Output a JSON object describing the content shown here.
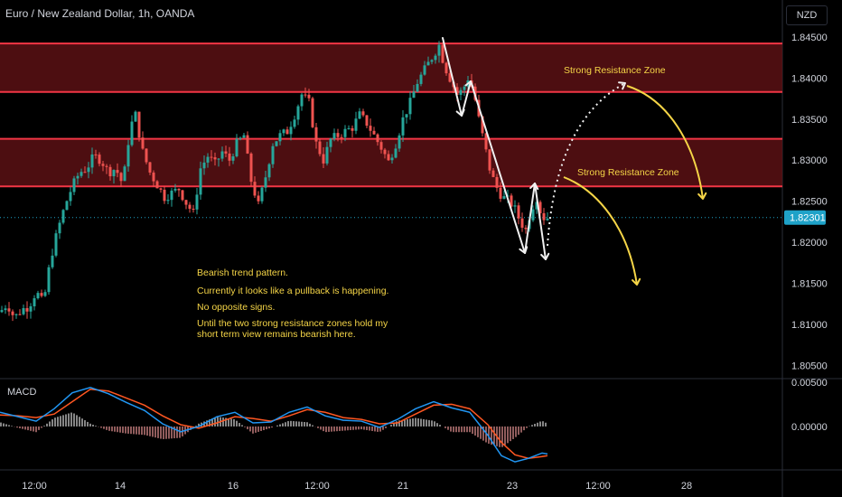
{
  "header": {
    "title": "Euro / New Zealand Dollar, 1h, OANDA",
    "currency": "NZD"
  },
  "macd_label": "MACD",
  "annotations": {
    "note_lines": [
      "Bearish trend pattern.",
      "Currently it looks like a pullback is happening.",
      "No opposite signs.",
      "Until the two strong resistance zones hold my",
      "short term view remains bearish here."
    ],
    "zone_label_upper": "Strong Resistance Zone",
    "zone_label_lower": "Strong Resistance Zone"
  },
  "colors": {
    "up": "#26a69a",
    "down": "#ef5350",
    "zone_fill": "#5a1014",
    "zone_border": "#f23645",
    "annotation": "#f5d547",
    "macd": "#2196f3",
    "signal": "#ff5722",
    "price_badge": "#1fa2c8"
  },
  "chart_data": {
    "type": "candlestick",
    "symbol": "EUR/NZD",
    "timeframe": "1h",
    "y_ticks": [
      "1.84500",
      "1.84000",
      "1.83500",
      "1.83000",
      "1.82500",
      "1.82000",
      "1.81500",
      "1.81000",
      "1.80500"
    ],
    "y_tick_values": [
      1.845,
      1.84,
      1.835,
      1.83,
      1.825,
      1.82,
      1.815,
      1.81,
      1.805
    ],
    "ylim": [
      1.8035,
      1.8495
    ],
    "x_ticks": [
      "12:00",
      "14",
      "16",
      "12:00",
      "21",
      "23",
      "12:00",
      "28"
    ],
    "current_price": "1.82301",
    "current_price_value": 1.82301,
    "resistance_zones": [
      {
        "name": "Strong Resistance Zone",
        "low": 1.8383,
        "high": 1.8442
      },
      {
        "name": "Strong Resistance Zone",
        "low": 1.8268,
        "high": 1.8326
      }
    ],
    "price_path": [
      [
        0,
        1.8115
      ],
      [
        8,
        1.8125
      ],
      [
        16,
        1.8108
      ],
      [
        24,
        1.8118
      ],
      [
        32,
        1.8122
      ],
      [
        40,
        1.814
      ],
      [
        48,
        1.8125
      ],
      [
        56,
        1.818
      ],
      [
        64,
        1.8215
      ],
      [
        72,
        1.8245
      ],
      [
        80,
        1.8268
      ],
      [
        88,
        1.8285
      ],
      [
        96,
        1.829
      ],
      [
        104,
        1.8305
      ],
      [
        112,
        1.83
      ],
      [
        120,
        1.8285
      ],
      [
        128,
        1.829
      ],
      [
        136,
        1.827
      ],
      [
        144,
        1.834
      ],
      [
        150,
        1.8355
      ],
      [
        158,
        1.831
      ],
      [
        166,
        1.8285
      ],
      [
        174,
        1.827
      ],
      [
        182,
        1.8255
      ],
      [
        190,
        1.826
      ],
      [
        198,
        1.8265
      ],
      [
        206,
        1.8248
      ],
      [
        214,
        1.8235
      ],
      [
        222,
        1.829
      ],
      [
        230,
        1.8305
      ],
      [
        238,
        1.8295
      ],
      [
        246,
        1.831
      ],
      [
        254,
        1.83
      ],
      [
        262,
        1.832
      ],
      [
        270,
        1.833
      ],
      [
        278,
        1.8275
      ],
      [
        286,
        1.8245
      ],
      [
        294,
        1.828
      ],
      [
        302,
        1.832
      ],
      [
        310,
        1.833
      ],
      [
        318,
        1.8335
      ],
      [
        326,
        1.8355
      ],
      [
        334,
        1.838
      ],
      [
        342,
        1.837
      ],
      [
        350,
        1.832
      ],
      [
        358,
        1.83
      ],
      [
        366,
        1.8325
      ],
      [
        374,
        1.833
      ],
      [
        382,
        1.8335
      ],
      [
        390,
        1.834
      ],
      [
        398,
        1.8355
      ],
      [
        406,
        1.8345
      ],
      [
        414,
        1.833
      ],
      [
        422,
        1.8315
      ],
      [
        430,
        1.8298
      ],
      [
        438,
        1.832
      ],
      [
        446,
        1.835
      ],
      [
        454,
        1.837
      ],
      [
        462,
        1.8395
      ],
      [
        470,
        1.841
      ],
      [
        478,
        1.8425
      ],
      [
        486,
        1.844
      ],
      [
        492,
        1.8415
      ],
      [
        500,
        1.8395
      ],
      [
        506,
        1.838
      ],
      [
        512,
        1.8385
      ],
      [
        518,
        1.84
      ],
      [
        524,
        1.8385
      ],
      [
        530,
        1.835
      ],
      [
        536,
        1.832
      ],
      [
        542,
        1.829
      ],
      [
        548,
        1.827
      ],
      [
        556,
        1.8255
      ],
      [
        564,
        1.825
      ],
      [
        570,
        1.824
      ],
      [
        576,
        1.8225
      ],
      [
        582,
        1.8215
      ],
      [
        588,
        1.824
      ],
      [
        594,
        1.8255
      ],
      [
        600,
        1.823
      ],
      [
        606,
        1.823
      ]
    ],
    "macd_ticks": [
      "0.00500",
      "0.00000"
    ],
    "macd_tick_values": [
      0.005,
      0.0
    ],
    "macd_ylim": [
      -0.0047,
      0.0053
    ],
    "macd_line": [
      [
        0,
        0.0016
      ],
      [
        20,
        0.0011
      ],
      [
        40,
        0.0006
      ],
      [
        60,
        0.002
      ],
      [
        80,
        0.0038
      ],
      [
        100,
        0.0044
      ],
      [
        120,
        0.0037
      ],
      [
        140,
        0.0027
      ],
      [
        160,
        0.0018
      ],
      [
        180,
        0.0003
      ],
      [
        200,
        -0.0006
      ],
      [
        220,
        0.0
      ],
      [
        240,
        0.0011
      ],
      [
        260,
        0.0016
      ],
      [
        280,
        0.0004
      ],
      [
        300,
        0.0005
      ],
      [
        320,
        0.0016
      ],
      [
        340,
        0.0022
      ],
      [
        360,
        0.0012
      ],
      [
        380,
        0.0007
      ],
      [
        400,
        0.0006
      ],
      [
        420,
        -0.0001
      ],
      [
        440,
        0.0008
      ],
      [
        460,
        0.002
      ],
      [
        480,
        0.0028
      ],
      [
        500,
        0.0021
      ],
      [
        520,
        0.0016
      ],
      [
        540,
        -0.001
      ],
      [
        555,
        -0.0033
      ],
      [
        570,
        -0.004
      ],
      [
        585,
        -0.0036
      ],
      [
        600,
        -0.003
      ],
      [
        606,
        -0.0031
      ]
    ],
    "signal_line": [
      [
        0,
        0.0013
      ],
      [
        20,
        0.0012
      ],
      [
        40,
        0.001
      ],
      [
        60,
        0.0014
      ],
      [
        80,
        0.0028
      ],
      [
        100,
        0.0042
      ],
      [
        120,
        0.004
      ],
      [
        140,
        0.0032
      ],
      [
        160,
        0.0024
      ],
      [
        180,
        0.0012
      ],
      [
        200,
        0.0002
      ],
      [
        220,
        -0.0002
      ],
      [
        240,
        0.0004
      ],
      [
        260,
        0.0011
      ],
      [
        280,
        0.0009
      ],
      [
        300,
        0.0006
      ],
      [
        320,
        0.0012
      ],
      [
        340,
        0.0019
      ],
      [
        360,
        0.0016
      ],
      [
        380,
        0.001
      ],
      [
        400,
        0.0008
      ],
      [
        420,
        0.0003
      ],
      [
        440,
        0.0004
      ],
      [
        460,
        0.0014
      ],
      [
        480,
        0.0024
      ],
      [
        500,
        0.0025
      ],
      [
        520,
        0.002
      ],
      [
        540,
        0.0002
      ],
      [
        555,
        -0.0018
      ],
      [
        570,
        -0.0032
      ],
      [
        585,
        -0.0036
      ],
      [
        600,
        -0.0034
      ],
      [
        606,
        -0.0033
      ]
    ]
  }
}
